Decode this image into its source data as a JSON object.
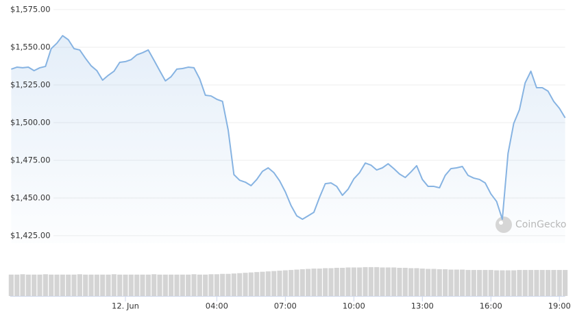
{
  "chart_data": {
    "type": "line",
    "watermark": "CoinGecko",
    "x": [
      -5,
      -4.75,
      -4.5,
      -4.25,
      -4,
      -3.75,
      -3.5,
      -3.25,
      -3,
      -2.75,
      -2.5,
      -2.25,
      -2,
      -1.75,
      -1.5,
      -1.25,
      -1,
      -0.75,
      -0.5,
      -0.25,
      0,
      0.25,
      0.5,
      0.75,
      1,
      1.25,
      1.5,
      1.75,
      2,
      2.25,
      2.5,
      2.75,
      3,
      3.25,
      3.5,
      3.75,
      4,
      4.25,
      4.5,
      4.75,
      5,
      5.25,
      5.5,
      5.75,
      6,
      6.25,
      6.5,
      6.75,
      7,
      7.25,
      7.5,
      7.75,
      8,
      8.25,
      8.5,
      8.75,
      9,
      9.25,
      9.5,
      9.75,
      10,
      10.25,
      10.5,
      10.75,
      11,
      11.25,
      11.5,
      11.75,
      12,
      12.25,
      12.5,
      12.75,
      13,
      13.25,
      13.5,
      13.75,
      14,
      14.25,
      14.5,
      14.75,
      15,
      15.25,
      15.5,
      15.75,
      16,
      16.25,
      16.5,
      16.75,
      17,
      17.25,
      17.5,
      17.75,
      18,
      18.25,
      18.5,
      18.75,
      19,
      19.25
    ],
    "series": [
      {
        "color": "#86b3e2",
        "values": [
          1535.5,
          1536.8,
          1536.4,
          1536.8,
          1534.5,
          1536.4,
          1537.3,
          1549.1,
          1552.7,
          1557.7,
          1555,
          1549.1,
          1548.2,
          1542.7,
          1537.7,
          1534.5,
          1528.2,
          1531.4,
          1534.1,
          1540,
          1540.5,
          1541.8,
          1545,
          1546.4,
          1548.2,
          1541.4,
          1534.5,
          1527.7,
          1530.5,
          1535.5,
          1535.9,
          1536.8,
          1536.4,
          1529.1,
          1518.2,
          1517.7,
          1515.5,
          1514.1,
          1495,
          1465.5,
          1461.8,
          1460.5,
          1458.2,
          1462.3,
          1467.7,
          1470,
          1466.8,
          1461.4,
          1454.1,
          1445,
          1438.2,
          1435.9,
          1438.2,
          1440.5,
          1450.5,
          1459.5,
          1460,
          1457.7,
          1451.8,
          1455.9,
          1462.7,
          1466.8,
          1473.2,
          1471.8,
          1468.6,
          1470,
          1472.7,
          1469.5,
          1465.9,
          1463.6,
          1467.3,
          1471.4,
          1462.3,
          1457.7,
          1457.7,
          1456.8,
          1465,
          1469.5,
          1470,
          1470.9,
          1465,
          1463.2,
          1462.3,
          1460,
          1452.7,
          1447.7,
          1435.9,
          1479.5,
          1499.5,
          1508.6,
          1526.4,
          1534.1,
          1523.2,
          1523.2,
          1520.9,
          1514.1,
          1509.5,
          1503.2
        ]
      },
      {
        "color": "#d4d4d4",
        "axis": "y2",
        "values": [
          60,
          60,
          61,
          60,
          60,
          60,
          61,
          60,
          60,
          60,
          60,
          60,
          61,
          60,
          60,
          60,
          60,
          60,
          61,
          60,
          60,
          60,
          60,
          60,
          60,
          61,
          60,
          60,
          60,
          60,
          60,
          60,
          61,
          60,
          60,
          61,
          61,
          62,
          62,
          63,
          64,
          65,
          66,
          67,
          68,
          69,
          70,
          71,
          72,
          73,
          74,
          75,
          76,
          77,
          77,
          78,
          78,
          79,
          79,
          80,
          80,
          80,
          81,
          81,
          81,
          80,
          80,
          80,
          79,
          79,
          78,
          78,
          77,
          76,
          76,
          75,
          75,
          74,
          74,
          74,
          73,
          73,
          73,
          73,
          73,
          72,
          72,
          72,
          72,
          73,
          73,
          73,
          73,
          73,
          73,
          73,
          73,
          73
        ]
      }
    ],
    "xlim": [
      -5.05,
      19.25
    ],
    "xticks": [
      {
        "value": 0,
        "label": "12. Jun"
      },
      {
        "value": 4,
        "label": "04:00"
      },
      {
        "value": 7,
        "label": "07:00"
      },
      {
        "value": 10,
        "label": "10:00"
      },
      {
        "value": 13,
        "label": "13:00"
      },
      {
        "value": 16,
        "label": "16:00"
      },
      {
        "value": 19,
        "label": "19:00"
      }
    ],
    "ylim": [
      1420,
      1578
    ],
    "yticks": [
      {
        "value": 1425,
        "label": "$1,425.00"
      },
      {
        "value": 1450,
        "label": "$1,450.00"
      },
      {
        "value": 1475,
        "label": "$1,475.00"
      },
      {
        "value": 1500,
        "label": "$1,500.00"
      },
      {
        "value": 1525,
        "label": "$1,525.00"
      },
      {
        "value": 1550,
        "label": "$1,550.00"
      },
      {
        "value": 1575,
        "label": "$1,575.00"
      }
    ],
    "y2lim": [
      0,
      100
    ],
    "grid": true
  }
}
